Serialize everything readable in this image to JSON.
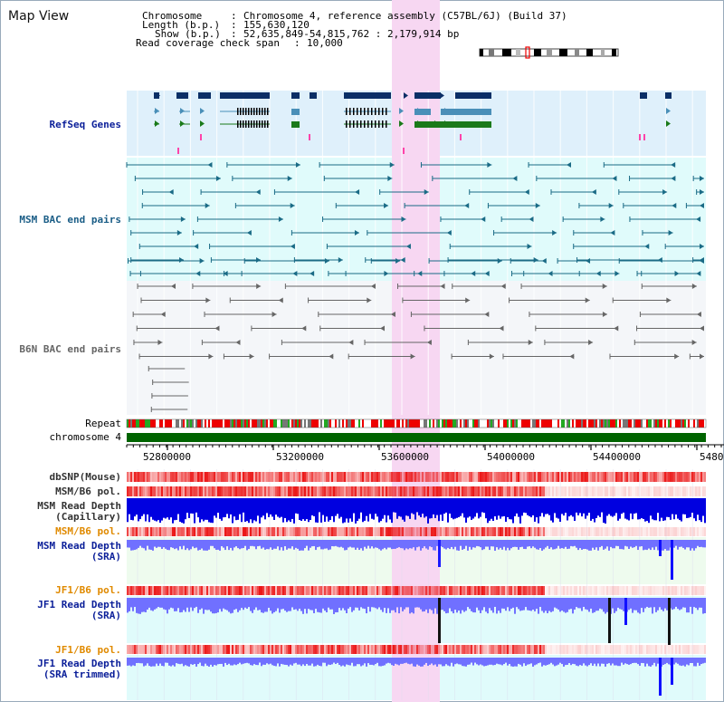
{
  "view": {
    "title": "Map View"
  },
  "info": {
    "chromosome_label": "Chromosome",
    "chromosome_value": "Chromosome 4, reference assembly (C57BL/6J) (Build 37)",
    "length_label": "Length (b.p.)",
    "length_value": "155,630,120",
    "show_label": "Show (b.p.)",
    "show_value": "52,635,849-54,815,762 : 2,179,914 bp",
    "coverage_label": "Read coverage check span",
    "coverage_value": "10,000"
  },
  "tracks": {
    "refseq": "RefSeq Genes",
    "msm_bac": "MSM BAC end pairs",
    "b6n_bac": "B6N BAC end pairs",
    "repeat": "Repeat",
    "chromosome": "chromosome 4",
    "dbsnp": "dbSNP(Mouse)",
    "msm_b6_pol_1": "MSM/B6 pol.",
    "msm_depth_cap_1": "MSM Read Depth",
    "msm_depth_cap_2": "(Capillary)",
    "msm_b6_pol_2": "MSM/B6 pol.",
    "msm_depth_sra_1": "MSM Read Depth",
    "msm_depth_sra_2": "(SRA)",
    "jf1_b6_pol_1": "JF1/B6 pol.",
    "jf1_depth_sra_1": "JF1 Read Depth",
    "jf1_depth_sra_2": "(SRA)",
    "jf1_b6_pol_2": "JF1/B6 pol.",
    "jf1_depth_trim_1": "JF1 Read Depth",
    "jf1_depth_trim_2": "(SRA trimmed)"
  },
  "axis": {
    "ticks": [
      "52800000",
      "53200000",
      "53600000",
      "54000000",
      "54400000",
      "5480"
    ]
  },
  "colors": {
    "highlight": "#f7d7f2",
    "refseq_bg": "#dff0fb",
    "msm_bg": "#e0fbfb",
    "b6n_bg": "#f4f6f9",
    "gene_navy": "#0b2f66",
    "gene_blue": "#4a8fb8",
    "gene_green": "#1a7a1a",
    "bac_teal": "#1a6b86",
    "bac_gray": "#666666",
    "depth_blue": "#0000e0",
    "depth_light": "#7070ff",
    "chrom_green": "#006400"
  },
  "icons": [
    "chromosome-ideogram",
    "gene-arrow",
    "bac-pair-arrow"
  ]
}
